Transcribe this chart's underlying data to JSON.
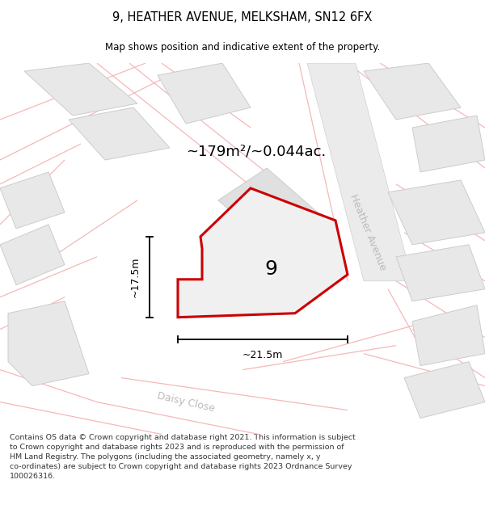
{
  "title": "9, HEATHER AVENUE, MELKSHAM, SN12 6FX",
  "subtitle": "Map shows position and indicative extent of the property.",
  "area_text": "~179m²/~0.044ac.",
  "label_number": "9",
  "dim_width": "~21.5m",
  "dim_height": "~17.5m",
  "street_heather": "Heather Avenue",
  "street_daisy": "Daisy Close",
  "footer": "Contains OS data © Crown copyright and database right 2021. This information is subject to Crown copyright and database rights 2023 and is reproduced with the permission of HM Land Registry. The polygons (including the associated geometry, namely x, y co-ordinates) are subject to Crown copyright and database rights 2023 Ordnance Survey 100026316.",
  "map_bg": "#ffffff",
  "block_fill": "#e8e8e8",
  "block_edge": "#cccccc",
  "plot_fill": "#f0f0f0",
  "plot_edge": "#cc0000",
  "faint_line": "#f5b8b8",
  "dim_line": "#000000",
  "text_color": "#000000",
  "street_color": "#bbbbbb",
  "fig_width": 6.0,
  "fig_height": 6.25
}
